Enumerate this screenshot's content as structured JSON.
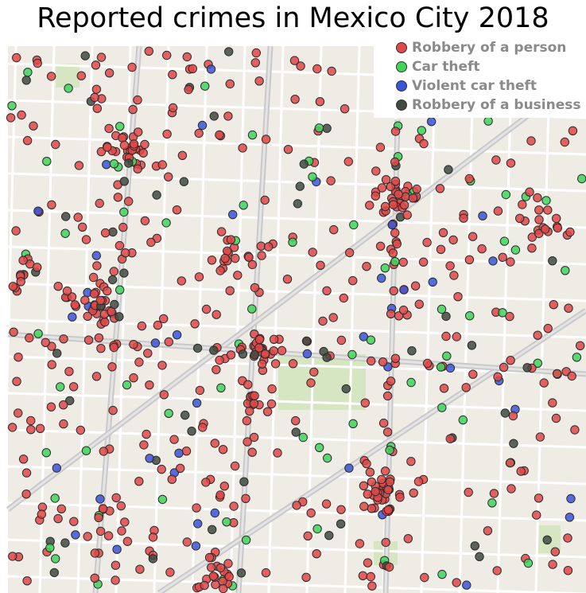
{
  "title": "Reported crimes in Mexico City 2018",
  "colors": {
    "map_background": "#efece6",
    "street": "#ffffff",
    "avenue": "#c9c9c9",
    "park": "#d6e6c3",
    "marker_outline": "#2b2b2b"
  },
  "legend": [
    {
      "key": "robbery_person",
      "label": "Robbery of a person",
      "color": "#e04848"
    },
    {
      "key": "car_theft",
      "label": "Car theft",
      "color": "#3fd45a"
    },
    {
      "key": "violent_car_theft",
      "label": "Violent car theft",
      "color": "#3a55d6"
    },
    {
      "key": "robbery_business",
      "label": "Robbery of a business",
      "color": "#3f4a40"
    }
  ]
}
